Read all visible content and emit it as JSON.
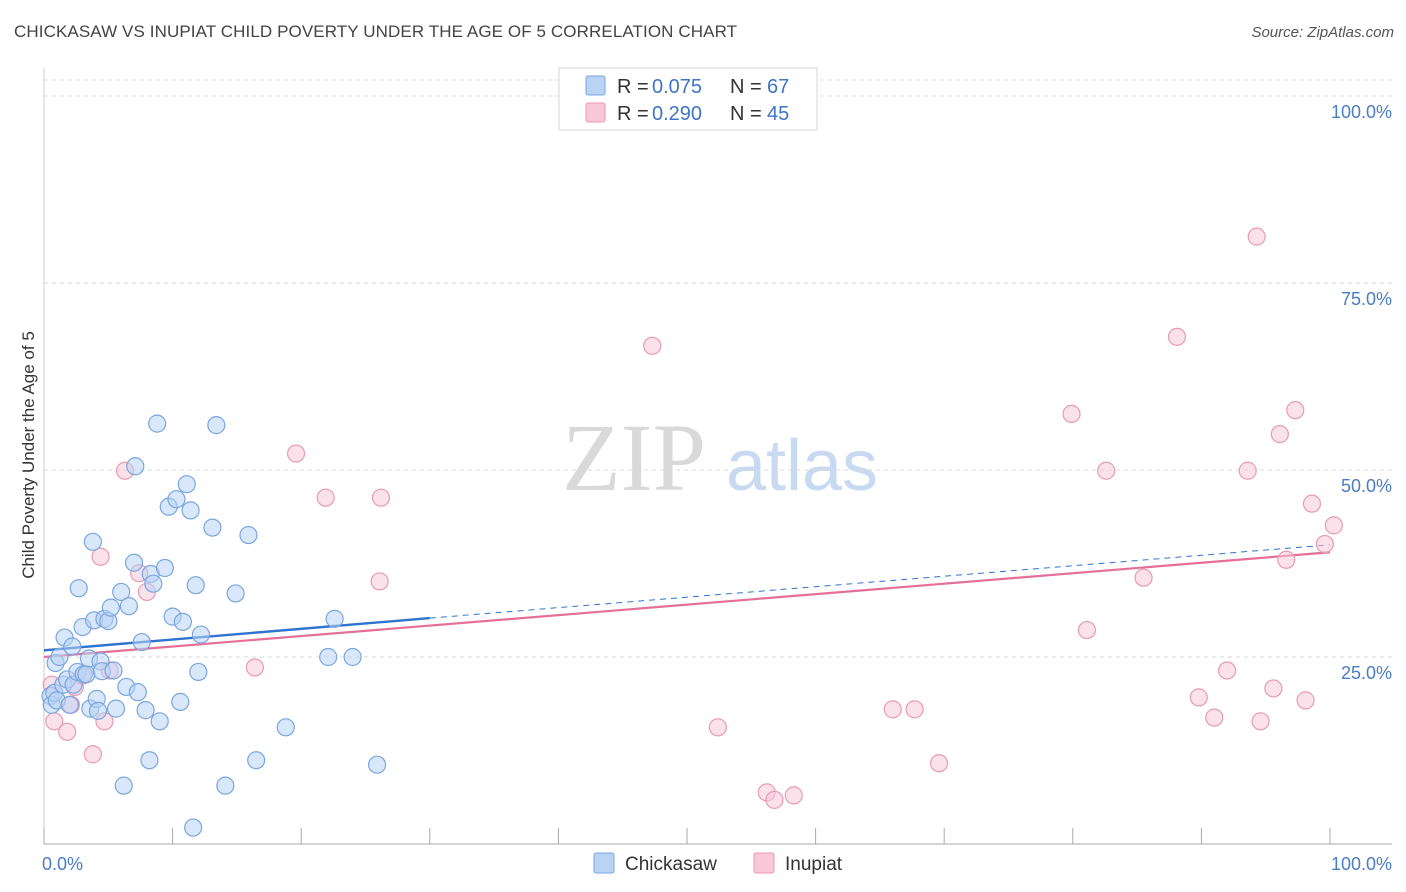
{
  "title": "CHICKASAW VS INUPIAT CHILD POVERTY UNDER THE AGE OF 5 CORRELATION CHART",
  "source": "Source: ZipAtlas.com",
  "watermark": {
    "zip": "ZIP",
    "atlas": "atlas"
  },
  "colors": {
    "chickasaw_fill": "#b8d3f4",
    "chickasaw_stroke": "#7aa6e0",
    "chickasaw_line": "#2f74cf",
    "inupiat_fill": "#f8c8d8",
    "inupiat_stroke": "#e89ab6",
    "inupiat_line": "#e46f98",
    "tick_text": "#4a7cc7",
    "grid": "#d8d8d8"
  },
  "legend": {
    "items": [
      {
        "r_label": "R =",
        "r_value": "0.075",
        "n_label": "N =",
        "n_value": "67"
      },
      {
        "r_label": "R =",
        "r_value": "0.290",
        "n_label": "N =",
        "n_value": "45"
      }
    ]
  },
  "bottom_legend": [
    "Chickasaw",
    "Inupiat"
  ],
  "chart_data": {
    "type": "scatter",
    "title": "CHICKASAW VS INUPIAT CHILD POVERTY UNDER THE AGE OF 5 CORRELATION CHART",
    "xlabel": "",
    "ylabel": "Child Poverty Under the Age of 5",
    "xlim": [
      0,
      100
    ],
    "ylim": [
      0,
      100
    ],
    "x_tick_labels": [
      "0.0%",
      "100.0%"
    ],
    "y_ticks": [
      25,
      50,
      75,
      100
    ],
    "y_tick_labels": [
      "25.0%",
      "50.0%",
      "75.0%",
      "100.0%"
    ],
    "grid": true,
    "legend_position": "top-center",
    "series": [
      {
        "name": "Chickasaw",
        "r": 0.075,
        "n": 67,
        "trend": {
          "x0": 0,
          "y0": 25.9,
          "x1": 30,
          "y1": 30.2,
          "x_dash_end": 100,
          "y_dash_end": 40.0
        },
        "points": [
          [
            0.5,
            19.8
          ],
          [
            0.6,
            18.6
          ],
          [
            0.8,
            20.2
          ],
          [
            0.9,
            24.2
          ],
          [
            1.0,
            19.2
          ],
          [
            1.2,
            25.0
          ],
          [
            1.5,
            21.3
          ],
          [
            1.6,
            27.6
          ],
          [
            1.8,
            22.0
          ],
          [
            2.0,
            18.6
          ],
          [
            2.2,
            26.4
          ],
          [
            2.3,
            21.3
          ],
          [
            2.6,
            23.0
          ],
          [
            2.7,
            34.2
          ],
          [
            3.0,
            29.0
          ],
          [
            3.1,
            22.7
          ],
          [
            3.3,
            22.7
          ],
          [
            3.5,
            24.8
          ],
          [
            3.6,
            18.1
          ],
          [
            3.8,
            40.4
          ],
          [
            3.9,
            29.9
          ],
          [
            4.1,
            19.4
          ],
          [
            4.2,
            17.8
          ],
          [
            4.4,
            24.4
          ],
          [
            4.5,
            23.1
          ],
          [
            4.7,
            30.1
          ],
          [
            5.0,
            29.8
          ],
          [
            5.2,
            31.6
          ],
          [
            5.4,
            23.2
          ],
          [
            5.6,
            18.1
          ],
          [
            6.0,
            33.7
          ],
          [
            6.2,
            7.8
          ],
          [
            6.4,
            21.0
          ],
          [
            6.6,
            31.8
          ],
          [
            7.0,
            37.6
          ],
          [
            7.1,
            50.5
          ],
          [
            7.3,
            20.3
          ],
          [
            7.6,
            27.0
          ],
          [
            7.9,
            17.9
          ],
          [
            8.2,
            11.2
          ],
          [
            8.3,
            36.1
          ],
          [
            8.5,
            34.8
          ],
          [
            8.8,
            56.2
          ],
          [
            9.0,
            16.4
          ],
          [
            9.4,
            36.9
          ],
          [
            9.7,
            45.1
          ],
          [
            10.0,
            30.4
          ],
          [
            10.3,
            46.1
          ],
          [
            10.6,
            19.0
          ],
          [
            10.8,
            29.7
          ],
          [
            11.1,
            48.1
          ],
          [
            11.4,
            44.6
          ],
          [
            11.6,
            2.2
          ],
          [
            11.8,
            34.6
          ],
          [
            12.0,
            23.0
          ],
          [
            12.2,
            28.0
          ],
          [
            13.1,
            42.3
          ],
          [
            13.4,
            56.0
          ],
          [
            14.1,
            7.8
          ],
          [
            15.9,
            41.3
          ],
          [
            14.9,
            33.5
          ],
          [
            16.5,
            11.2
          ],
          [
            18.8,
            15.6
          ],
          [
            22.1,
            25.0
          ],
          [
            22.6,
            30.1
          ],
          [
            24.0,
            25.0
          ],
          [
            25.9,
            10.6
          ]
        ]
      },
      {
        "name": "Inupiat",
        "r": 0.29,
        "n": 45,
        "trend": {
          "x0": 0,
          "y0": 25.0,
          "x1": 100,
          "y1": 39.0
        },
        "points": [
          [
            0.6,
            21.3
          ],
          [
            0.8,
            16.4
          ],
          [
            1.8,
            15.0
          ],
          [
            2.1,
            18.6
          ],
          [
            2.4,
            21.0
          ],
          [
            3.0,
            22.5
          ],
          [
            3.8,
            12.0
          ],
          [
            4.4,
            38.4
          ],
          [
            4.7,
            16.4
          ],
          [
            5.1,
            23.2
          ],
          [
            6.3,
            49.9
          ],
          [
            7.4,
            36.2
          ],
          [
            8.0,
            33.7
          ],
          [
            19.6,
            52.2
          ],
          [
            21.9,
            46.3
          ],
          [
            26.1,
            35.1
          ],
          [
            26.2,
            46.3
          ],
          [
            16.4,
            23.6
          ],
          [
            47.3,
            66.6
          ],
          [
            52.4,
            15.6
          ],
          [
            56.2,
            6.9
          ],
          [
            56.8,
            5.9
          ],
          [
            58.3,
            6.5
          ],
          [
            66.0,
            18.0
          ],
          [
            67.7,
            18.0
          ],
          [
            69.6,
            10.8
          ],
          [
            79.9,
            57.5
          ],
          [
            81.1,
            28.6
          ],
          [
            82.6,
            49.9
          ],
          [
            85.5,
            35.6
          ],
          [
            88.1,
            67.8
          ],
          [
            89.8,
            19.6
          ],
          [
            91.0,
            16.9
          ],
          [
            92.0,
            23.2
          ],
          [
            93.6,
            49.9
          ],
          [
            94.3,
            81.2
          ],
          [
            94.6,
            16.4
          ],
          [
            96.1,
            54.8
          ],
          [
            96.6,
            38.0
          ],
          [
            97.3,
            58.0
          ],
          [
            98.6,
            45.5
          ],
          [
            99.6,
            40.1
          ],
          [
            100.3,
            42.6
          ],
          [
            95.6,
            20.8
          ],
          [
            98.1,
            19.2
          ]
        ]
      }
    ]
  }
}
